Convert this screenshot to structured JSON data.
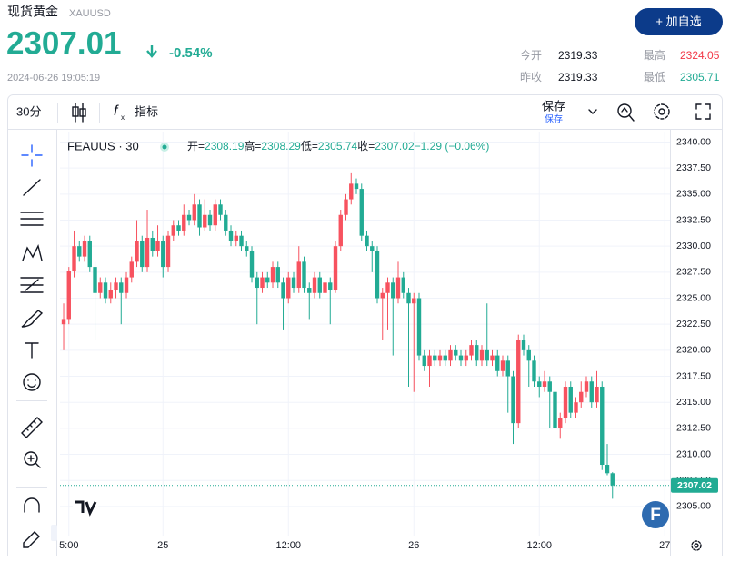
{
  "header": {
    "title": "现货黄金",
    "symbol": "XAUUSD",
    "price": "2307.01",
    "change": "-0.54%",
    "timestamp": "2024-06-26 19:05:19",
    "button": "+ 加自选",
    "stats": [
      {
        "label": "今开",
        "value": "2319.33"
      },
      {
        "label": "最高",
        "value": "2324.05"
      },
      {
        "label": "昨收",
        "value": "2319.33"
      },
      {
        "label": "最低",
        "value": "2305.71"
      }
    ]
  },
  "toolbar": {
    "interval": "30分",
    "indicators": "指标",
    "save": "保存",
    "save_sub": "保存"
  },
  "chart_data": {
    "type": "candlestick",
    "symbol": "FEAUUS · 30",
    "legend_labels": [
      "开=",
      "高=",
      "低=",
      "收="
    ],
    "legend_change": "−1.29 (−0.06%)",
    "up_color": "#f7525f",
    "down_color": "#22ab94",
    "grid": true,
    "xlim": [
      -0.7,
      116
    ],
    "ylim": [
      2302.2,
      2341.0
    ],
    "xticks": [
      {
        "value": 1,
        "label": "5:00"
      },
      {
        "value": 19,
        "label": "25"
      },
      {
        "value": 43,
        "label": "12:00"
      },
      {
        "value": 67,
        "label": "26"
      },
      {
        "value": 91,
        "label": "12:00"
      },
      {
        "value": 115,
        "label": "27"
      }
    ],
    "yticks": [
      {
        "value": 2305,
        "label": "2305.00"
      },
      {
        "value": 2307.5,
        "label": "2307.50"
      },
      {
        "value": 2310,
        "label": "2310.00"
      },
      {
        "value": 2312.5,
        "label": "2312.50"
      },
      {
        "value": 2315,
        "label": "2315.00"
      },
      {
        "value": 2317.5,
        "label": "2317.50"
      },
      {
        "value": 2320,
        "label": "2320.00"
      },
      {
        "value": 2322.5,
        "label": "2322.50"
      },
      {
        "value": 2325,
        "label": "2325.00"
      },
      {
        "value": 2327.5,
        "label": "2327.50"
      },
      {
        "value": 2330,
        "label": "2330.00"
      },
      {
        "value": 2332.5,
        "label": "2332.50"
      },
      {
        "value": 2335,
        "label": "2335.00"
      },
      {
        "value": 2337.5,
        "label": "2337.50"
      },
      {
        "value": 2340,
        "label": "2340.00"
      }
    ],
    "ohlc": [
      [
        2322.5,
        2324.5,
        2320.0,
        2323.0
      ],
      [
        2323.0,
        2328.0,
        2322.5,
        2327.6
      ],
      [
        2327.6,
        2331.5,
        2327.0,
        2330.0
      ],
      [
        2330.0,
        2330.5,
        2328.5,
        2329.0
      ],
      [
        2329.0,
        2331.0,
        2328.5,
        2330.5
      ],
      [
        2330.5,
        2331.0,
        2327.5,
        2328.0
      ],
      [
        2328.0,
        2328.5,
        2321.0,
        2325.5
      ],
      [
        2325.5,
        2327.0,
        2325.0,
        2326.5
      ],
      [
        2326.5,
        2327.0,
        2324.5,
        2325.0
      ],
      [
        2325.0,
        2326.5,
        2324.5,
        2325.8
      ],
      [
        2325.8,
        2327.0,
        2325.0,
        2326.5
      ],
      [
        2326.5,
        2327.0,
        2322.5,
        2325.5
      ],
      [
        2325.5,
        2327.5,
        2325.0,
        2327.0
      ],
      [
        2327.0,
        2329.0,
        2326.5,
        2328.5
      ],
      [
        2328.5,
        2332.5,
        2328.0,
        2330.5
      ],
      [
        2330.5,
        2331.0,
        2327.5,
        2328.0
      ],
      [
        2328.0,
        2333.5,
        2327.5,
        2330.8
      ],
      [
        2330.8,
        2331.5,
        2329.0,
        2329.5
      ],
      [
        2329.5,
        2332.0,
        2329.0,
        2330.5
      ],
      [
        2330.5,
        2331.0,
        2327.0,
        2328.0
      ],
      [
        2328.0,
        2331.5,
        2327.5,
        2331.0
      ],
      [
        2331.0,
        2332.5,
        2330.5,
        2332.0
      ],
      [
        2332.0,
        2332.5,
        2331.0,
        2331.5
      ],
      [
        2331.5,
        2334.0,
        2331.0,
        2333.0
      ],
      [
        2333.0,
        2333.5,
        2332.0,
        2332.5
      ],
      [
        2332.5,
        2335.0,
        2332.0,
        2334.0
      ],
      [
        2334.0,
        2334.5,
        2331.0,
        2331.8
      ],
      [
        2331.8,
        2334.5,
        2331.5,
        2333.0
      ],
      [
        2333.0,
        2333.5,
        2331.5,
        2332.0
      ],
      [
        2332.0,
        2334.5,
        2331.5,
        2334.0
      ],
      [
        2334.0,
        2334.5,
        2332.5,
        2333.0
      ],
      [
        2333.0,
        2333.5,
        2331.0,
        2331.5
      ],
      [
        2331.5,
        2332.0,
        2330.0,
        2330.5
      ],
      [
        2330.5,
        2331.5,
        2330.0,
        2331.0
      ],
      [
        2331.0,
        2331.5,
        2329.5,
        2330.0
      ],
      [
        2330.0,
        2330.5,
        2329.0,
        2329.5
      ],
      [
        2329.5,
        2330.0,
        2326.5,
        2327.0
      ],
      [
        2327.0,
        2327.5,
        2322.5,
        2326.0
      ],
      [
        2326.0,
        2327.5,
        2325.5,
        2327.0
      ],
      [
        2327.0,
        2327.5,
        2326.0,
        2326.5
      ],
      [
        2326.5,
        2328.5,
        2326.0,
        2328.0
      ],
      [
        2328.0,
        2328.5,
        2326.0,
        2326.5
      ],
      [
        2326.5,
        2327.0,
        2322.0,
        2325.0
      ],
      [
        2325.0,
        2327.5,
        2324.5,
        2327.0
      ],
      [
        2327.0,
        2327.5,
        2325.5,
        2326.0
      ],
      [
        2326.0,
        2330.0,
        2325.5,
        2328.5
      ],
      [
        2328.5,
        2329.0,
        2325.5,
        2326.0
      ],
      [
        2326.0,
        2326.5,
        2323.0,
        2325.5
      ],
      [
        2325.5,
        2327.5,
        2325.0,
        2327.0
      ],
      [
        2327.0,
        2327.5,
        2325.0,
        2325.5
      ],
      [
        2325.5,
        2327.0,
        2325.0,
        2326.5
      ],
      [
        2326.5,
        2327.0,
        2322.5,
        2325.8
      ],
      [
        2325.8,
        2330.5,
        2325.5,
        2330.0
      ],
      [
        2330.0,
        2333.5,
        2329.5,
        2333.0
      ],
      [
        2333.0,
        2335.0,
        2332.5,
        2334.5
      ],
      [
        2334.5,
        2337.0,
        2334.0,
        2336.0
      ],
      [
        2336.0,
        2336.5,
        2335.0,
        2335.5
      ],
      [
        2335.5,
        2336.0,
        2330.5,
        2331.0
      ],
      [
        2331.0,
        2331.5,
        2329.5,
        2330.0
      ],
      [
        2330.0,
        2330.5,
        2327.5,
        2329.5
      ],
      [
        2329.5,
        2330.0,
        2324.5,
        2325.0
      ],
      [
        2325.0,
        2326.0,
        2321.0,
        2325.5
      ],
      [
        2325.5,
        2327.0,
        2322.0,
        2326.5
      ],
      [
        2326.5,
        2327.0,
        2319.5,
        2325.0
      ],
      [
        2325.0,
        2328.5,
        2324.5,
        2327.0
      ],
      [
        2327.0,
        2327.5,
        2325.0,
        2325.5
      ],
      [
        2325.5,
        2326.0,
        2316.5,
        2324.5
      ],
      [
        2324.5,
        2325.5,
        2316.0,
        2325.0
      ],
      [
        2325.0,
        2325.5,
        2319.0,
        2319.5
      ],
      [
        2319.5,
        2320.0,
        2318.0,
        2318.5
      ],
      [
        2318.5,
        2320.0,
        2316.5,
        2319.5
      ],
      [
        2319.5,
        2320.0,
        2318.5,
        2319.0
      ],
      [
        2319.0,
        2320.0,
        2318.5,
        2319.5
      ],
      [
        2319.5,
        2320.0,
        2318.5,
        2319.0
      ],
      [
        2319.0,
        2320.5,
        2318.5,
        2320.0
      ],
      [
        2320.0,
        2320.5,
        2319.0,
        2319.5
      ],
      [
        2319.5,
        2320.0,
        2318.5,
        2319.0
      ],
      [
        2319.0,
        2320.0,
        2318.5,
        2319.5
      ],
      [
        2319.5,
        2321.0,
        2319.0,
        2320.5
      ],
      [
        2320.5,
        2321.0,
        2318.5,
        2319.0
      ],
      [
        2319.0,
        2320.5,
        2318.5,
        2320.0
      ],
      [
        2320.0,
        2324.5,
        2318.5,
        2319.0
      ],
      [
        2319.0,
        2320.0,
        2318.5,
        2319.5
      ],
      [
        2319.5,
        2320.0,
        2317.5,
        2318.0
      ],
      [
        2318.0,
        2319.5,
        2317.5,
        2319.0
      ],
      [
        2319.0,
        2319.5,
        2314.0,
        2317.5
      ],
      [
        2317.5,
        2318.0,
        2311.0,
        2313.0
      ],
      [
        2313.0,
        2321.5,
        2312.5,
        2321.0
      ],
      [
        2321.0,
        2321.5,
        2319.5,
        2320.0
      ],
      [
        2320.0,
        2320.5,
        2316.5,
        2319.0
      ],
      [
        2319.0,
        2319.5,
        2316.5,
        2317.0
      ],
      [
        2317.0,
        2317.5,
        2315.5,
        2316.5
      ],
      [
        2316.5,
        2318.0,
        2316.0,
        2317.0
      ],
      [
        2317.0,
        2317.5,
        2312.5,
        2316.0
      ],
      [
        2316.0,
        2316.5,
        2310.0,
        2312.5
      ],
      [
        2312.5,
        2314.0,
        2311.5,
        2313.5
      ],
      [
        2313.5,
        2317.0,
        2313.0,
        2316.5
      ],
      [
        2316.5,
        2317.0,
        2313.5,
        2314.0
      ],
      [
        2314.0,
        2315.5,
        2313.5,
        2315.0
      ],
      [
        2315.0,
        2317.0,
        2314.5,
        2316.0
      ],
      [
        2316.0,
        2317.5,
        2315.5,
        2317.0
      ],
      [
        2317.0,
        2317.5,
        2314.5,
        2315.0
      ],
      [
        2315.0,
        2318.0,
        2314.5,
        2316.5
      ],
      [
        2316.5,
        2317.0,
        2308.5,
        2309.0
      ],
      [
        2309.0,
        2311.0,
        2308.0,
        2308.19
      ],
      [
        2308.19,
        2308.29,
        2305.74,
        2307.02
      ]
    ]
  }
}
